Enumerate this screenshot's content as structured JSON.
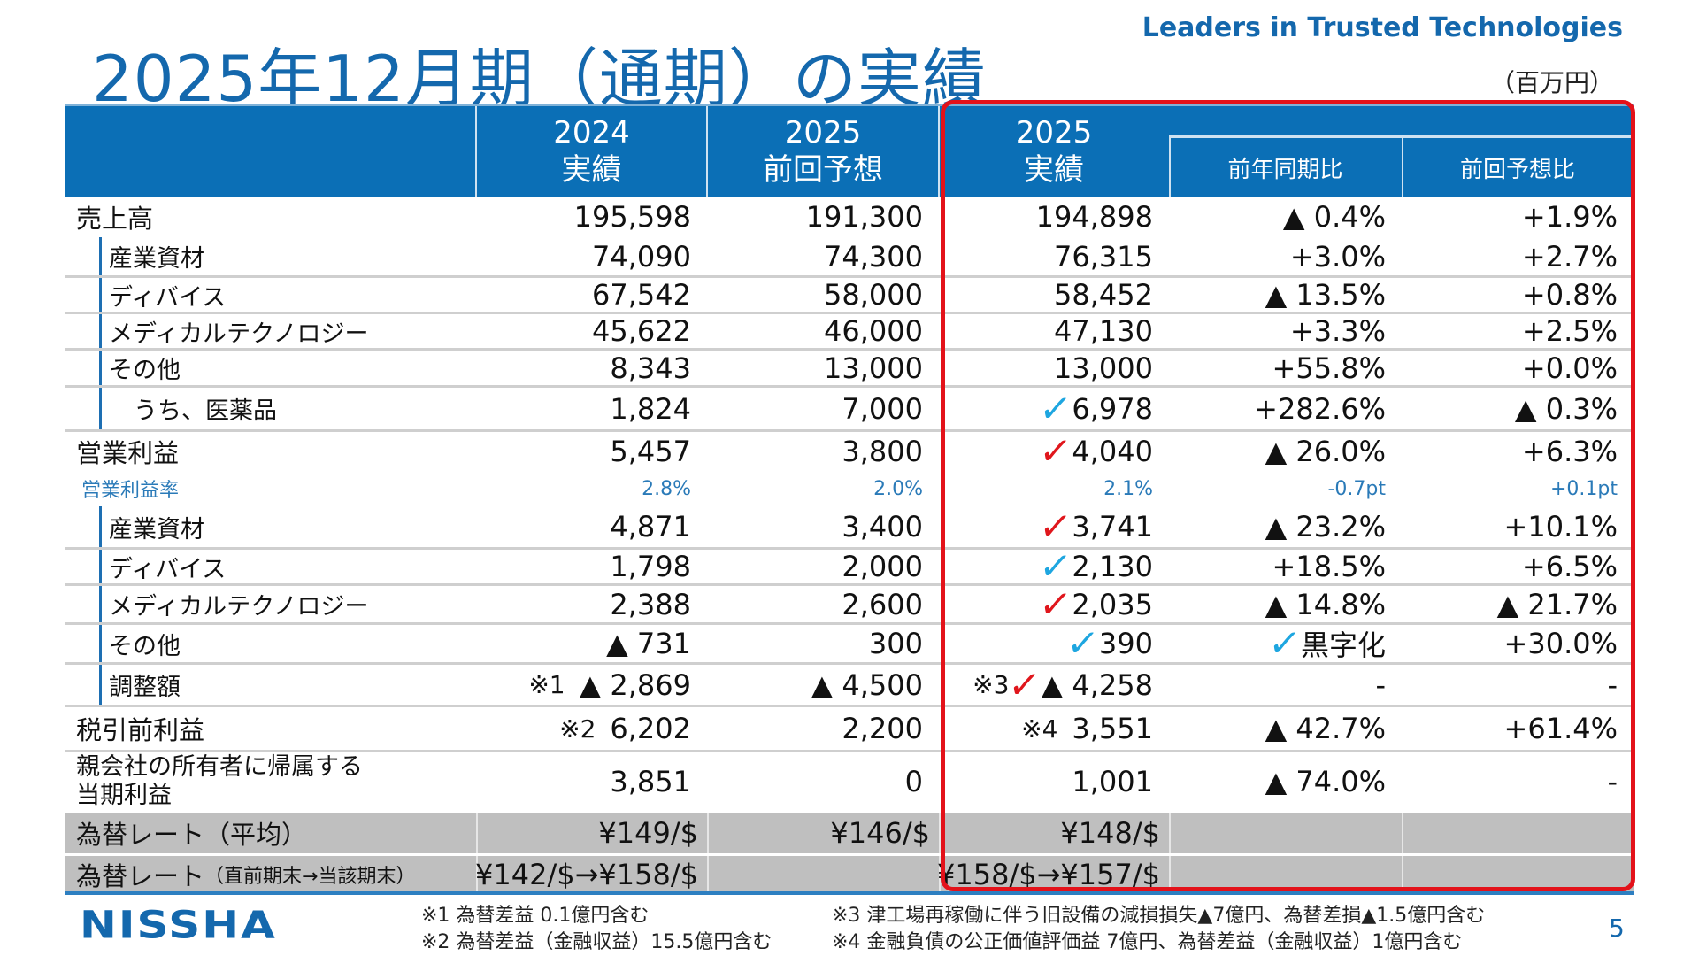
{
  "title": "2025年12月期（通期）の実績",
  "tagline": "Leaders in Trusted Technologies",
  "unit": "（百万円）",
  "header": {
    "col_2024": [
      "2024",
      "実績"
    ],
    "col_2025_forecast": [
      "2025",
      "前回予想"
    ],
    "col_2025_actual": [
      "2025",
      "実績"
    ],
    "col_yoy": "前年同期比",
    "col_vs_forecast": "前回予想比"
  },
  "colors": {
    "header": "#0b6fb6",
    "title": "#1468ad",
    "highlight_box": "#e3121a",
    "check_red": "#e0161c",
    "check_blue": "#1ea6e0"
  },
  "rows": [
    {
      "label": "売上高",
      "level": "main",
      "cells": [
        {
          "v": "195,598"
        },
        {
          "v": "191,300"
        },
        {
          "v": "194,898"
        },
        {
          "v": "▲ 0.4%"
        },
        {
          "v": "+1.9%"
        }
      ]
    },
    {
      "label": "産業資材",
      "level": "sub",
      "cells": [
        {
          "v": "74,090"
        },
        {
          "v": "74,300"
        },
        {
          "v": "76,315"
        },
        {
          "v": "+3.0%"
        },
        {
          "v": "+2.7%"
        }
      ]
    },
    {
      "label": "ディバイス",
      "level": "sub",
      "cells": [
        {
          "v": "67,542"
        },
        {
          "v": "58,000"
        },
        {
          "v": "58,452"
        },
        {
          "v": "▲ 13.5%"
        },
        {
          "v": "+0.8%"
        }
      ]
    },
    {
      "label": "メディカルテクノロジー",
      "level": "sub",
      "cells": [
        {
          "v": "45,622"
        },
        {
          "v": "46,000"
        },
        {
          "v": "47,130"
        },
        {
          "v": "+3.3%"
        },
        {
          "v": "+2.5%"
        }
      ]
    },
    {
      "label": "その他",
      "level": "sub",
      "cells": [
        {
          "v": "8,343"
        },
        {
          "v": "13,000"
        },
        {
          "v": "13,000"
        },
        {
          "v": "+55.8%"
        },
        {
          "v": "+0.0%"
        }
      ]
    },
    {
      "label": "うち、医薬品",
      "level": "subsub",
      "cells": [
        {
          "v": "1,824"
        },
        {
          "v": "7,000"
        },
        {
          "v": "6,978",
          "check": "blue"
        },
        {
          "v": "+282.6%"
        },
        {
          "v": "▲ 0.3%"
        }
      ]
    },
    {
      "label": "営業利益",
      "level": "main",
      "cells": [
        {
          "v": "5,457"
        },
        {
          "v": "3,800"
        },
        {
          "v": "4,040",
          "check": "red"
        },
        {
          "v": "▲ 26.0%"
        },
        {
          "v": "+6.3%"
        }
      ]
    },
    {
      "label": "営業利益率",
      "level": "ratio",
      "cells": [
        {
          "v": "2.8%"
        },
        {
          "v": "2.0%"
        },
        {
          "v": "2.1%"
        },
        {
          "v": "-0.7pt"
        },
        {
          "v": "+0.1pt"
        }
      ]
    },
    {
      "label": "産業資材",
      "level": "sub",
      "cells": [
        {
          "v": "4,871"
        },
        {
          "v": "3,400"
        },
        {
          "v": "3,741",
          "check": "red"
        },
        {
          "v": "▲ 23.2%"
        },
        {
          "v": "+10.1%"
        }
      ]
    },
    {
      "label": "ディバイス",
      "level": "sub",
      "cells": [
        {
          "v": "1,798"
        },
        {
          "v": "2,000"
        },
        {
          "v": "2,130",
          "check": "blue"
        },
        {
          "v": "+18.5%"
        },
        {
          "v": "+6.5%"
        }
      ]
    },
    {
      "label": "メディカルテクノロジー",
      "level": "sub",
      "cells": [
        {
          "v": "2,388"
        },
        {
          "v": "2,600"
        },
        {
          "v": "2,035",
          "check": "red"
        },
        {
          "v": "▲ 14.8%"
        },
        {
          "v": "▲ 21.7%"
        }
      ]
    },
    {
      "label": "その他",
      "level": "sub",
      "cells": [
        {
          "v": "▲ 731"
        },
        {
          "v": "300"
        },
        {
          "v": "390",
          "check": "blue"
        },
        {
          "v": "黒字化",
          "check": "blue"
        },
        {
          "v": "+30.0%"
        }
      ]
    },
    {
      "label": "調整額",
      "level": "sub",
      "cells": [
        {
          "v": "▲ 2,869",
          "note": "※1"
        },
        {
          "v": "▲ 4,500"
        },
        {
          "v": "▲ 4,258",
          "note": "※3",
          "check": "red"
        },
        {
          "v": "-"
        },
        {
          "v": "-"
        }
      ]
    },
    {
      "label": "税引前利益",
      "level": "main",
      "cells": [
        {
          "v": "6,202",
          "note": "※2"
        },
        {
          "v": "2,200"
        },
        {
          "v": "3,551",
          "note": "※4"
        },
        {
          "v": "▲ 42.7%"
        },
        {
          "v": "+61.4%"
        }
      ]
    },
    {
      "label": "親会社の所有者に帰属する\n当期利益",
      "level": "main2",
      "cells": [
        {
          "v": "3,851"
        },
        {
          "v": "0"
        },
        {
          "v": "1,001"
        },
        {
          "v": "▲ 74.0%"
        },
        {
          "v": "-"
        }
      ]
    },
    {
      "label": "為替レート（平均）",
      "level": "fx",
      "cells": [
        {
          "v": "¥149/$"
        },
        {
          "v": "¥146/$"
        },
        {
          "v": "¥148/$"
        },
        {
          "v": ""
        },
        {
          "v": ""
        }
      ]
    },
    {
      "label": "為替レート",
      "label_small": "（直前期末→当該期末）",
      "level": "fx",
      "cells": [
        {
          "v": "¥142/$→¥158/$"
        },
        {
          "v": ""
        },
        {
          "v": "¥158/$→¥157/$"
        },
        {
          "v": ""
        },
        {
          "v": ""
        }
      ]
    }
  ],
  "footnotes": [
    "※1 為替差益 0.1億円含む",
    "※2 為替差益（金融収益）15.5億円含む",
    "※3 津工場再稼働に伴う旧設備の減損損失▲7億円、為替差損▲1.5億円含む",
    "※4 金融負債の公正価値評価益 7億円、為替差益（金融収益）1億円含む"
  ],
  "logo": "nissha",
  "page_number": "5"
}
